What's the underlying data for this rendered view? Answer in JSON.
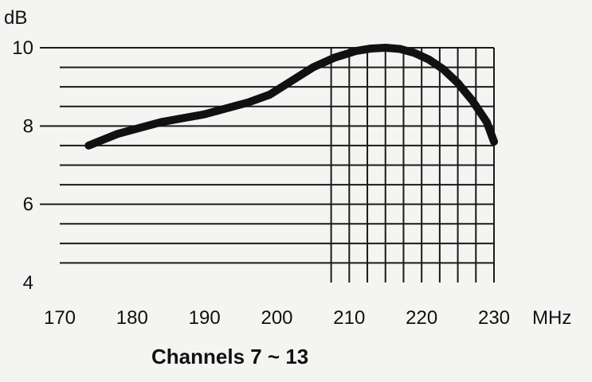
{
  "chart_data": {
    "type": "line",
    "title": "",
    "caption": "Channels 7 ~ 13",
    "ylabel": "dB",
    "xunit": "MHz",
    "xlim": [
      170,
      230
    ],
    "ylim": [
      4,
      10
    ],
    "x_ticks": [
      "170",
      "180",
      "190",
      "200",
      "210",
      "220",
      "230"
    ],
    "y_ticks": [
      "4",
      "6",
      "8",
      "10"
    ],
    "grid": true,
    "gridlines_y": [
      4.5,
      5,
      5.5,
      6,
      6.5,
      7,
      7.5,
      8,
      8.5,
      9,
      9.5,
      10
    ],
    "gridlines_x": [
      207.5,
      210,
      212.5,
      215,
      217.5,
      220,
      222.5,
      225,
      227.5,
      230
    ],
    "series": [
      {
        "name": "",
        "x": [
          174,
          176,
          178,
          181,
          184,
          187,
          190,
          193,
          196,
          199,
          202,
          205,
          208,
          211,
          213,
          215,
          217,
          219,
          221,
          223,
          225,
          227,
          229,
          230
        ],
        "y": [
          7.5,
          7.65,
          7.8,
          7.95,
          8.1,
          8.2,
          8.3,
          8.45,
          8.6,
          8.8,
          9.15,
          9.5,
          9.75,
          9.92,
          9.98,
          10.0,
          9.97,
          9.87,
          9.7,
          9.45,
          9.1,
          8.65,
          8.1,
          7.6
        ]
      }
    ]
  }
}
